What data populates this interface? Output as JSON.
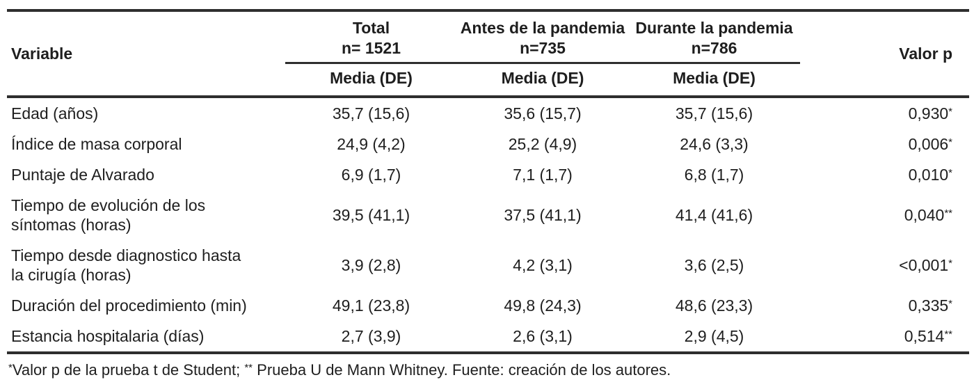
{
  "colors": {
    "background": "#ffffff",
    "text": "#1e1e1e",
    "rule": "#2e2e2e"
  },
  "table": {
    "header": {
      "variable_label": "Variable",
      "groups": [
        {
          "line1": "Total",
          "line2": "n= 1521",
          "sub": "Media (DE)"
        },
        {
          "line1": "Antes de la pandemia",
          "line2": "n=735",
          "sub": "Media (DE)"
        },
        {
          "line1": "Durante la pandemia",
          "line2": "n=786",
          "sub": "Media (DE)"
        }
      ],
      "p_label": "Valor p"
    },
    "rows": [
      {
        "variable": "Edad (años)",
        "total": "35,7 (15,6)",
        "antes": "35,6 (15,7)",
        "durante": "35,7 (15,6)",
        "p": "0,930",
        "p_sup": "*"
      },
      {
        "variable": "Índice de masa corporal",
        "total": "24,9 (4,2)",
        "antes": "25,2 (4,9)",
        "durante": "24,6 (3,3)",
        "p": "0,006",
        "p_sup": "*"
      },
      {
        "variable": "Puntaje de Alvarado",
        "total": "6,9 (1,7)",
        "antes": "7,1 (1,7)",
        "durante": "6,8 (1,7)",
        "p": "0,010",
        "p_sup": "*"
      },
      {
        "variable": "Tiempo de evolución de los\nsíntomas (horas)",
        "total": "39,5 (41,1)",
        "antes": "37,5 (41,1)",
        "durante": "41,4 (41,6)",
        "p": "0,040",
        "p_sup": "**"
      },
      {
        "variable": "Tiempo desde diagnostico hasta\nla cirugía (horas)",
        "total": "3,9 (2,8)",
        "antes": "4,2 (3,1)",
        "durante": "3,6 (2,5)",
        "p": "<0,001",
        "p_sup": "*"
      },
      {
        "variable": "Duración del procedimiento (min)",
        "total": "49,1 (23,8)",
        "antes": "49,8 (24,3)",
        "durante": "48,6 (23,3)",
        "p": "0,335",
        "p_sup": "*"
      },
      {
        "variable": "Estancia hospitalaria (días)",
        "total": "2,7 (3,9)",
        "antes": "2,6 (3,1)",
        "durante": "2,9 (4,5)",
        "p": "0,514",
        "p_sup": "**"
      }
    ],
    "footnote": {
      "sup1": "*",
      "text1": "Valor p de la prueba t de Student; ",
      "sup2": "**",
      "text2": " Prueba U de Mann Whitney. Fuente: creación de los autores."
    }
  }
}
